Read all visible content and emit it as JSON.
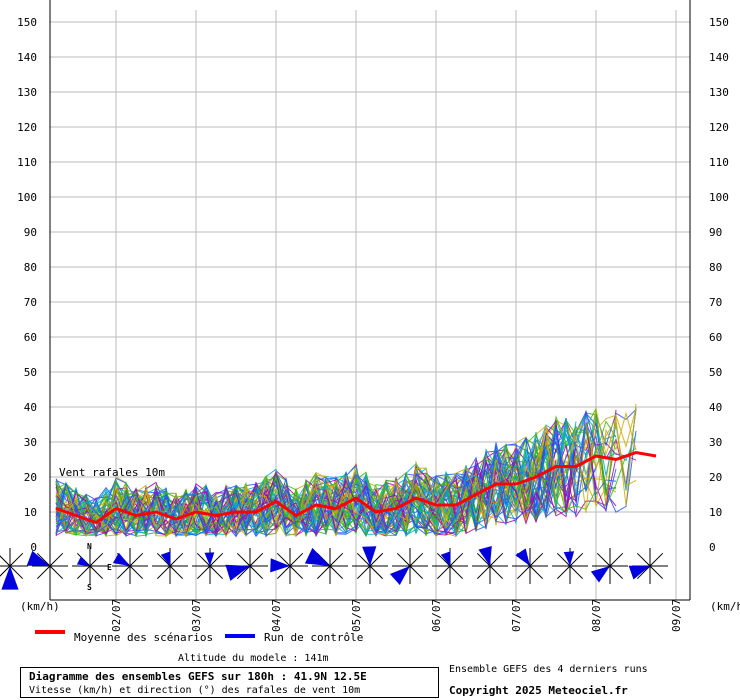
{
  "chart_data": {
    "type": "line",
    "title": "Diagramme des ensembles GEFS sur 180h : 41.9N 12.5E",
    "subtitle": "Vitesse (km/h) et direction (°) des rafales de vent 10m",
    "ylabel": "(km/h)",
    "y_unit_left": "(km/h)",
    "y_unit_right": "(km/h)",
    "ylim": [
      0,
      155
    ],
    "y_ticks": [
      0,
      10,
      20,
      30,
      40,
      50,
      60,
      70,
      80,
      90,
      100,
      110,
      120,
      130,
      140,
      150
    ],
    "xlim_hours": [
      0,
      180
    ],
    "x_ticks": [
      {
        "label": "02/07",
        "hour": 18
      },
      {
        "label": "03/07",
        "hour": 42
      },
      {
        "label": "04/07",
        "hour": 66
      },
      {
        "label": "05/07",
        "hour": 90
      },
      {
        "label": "06/07",
        "hour": 114
      },
      {
        "label": "07/07",
        "hour": 138
      },
      {
        "label": "08/07",
        "hour": 162
      },
      {
        "label": "09/07",
        "hour": 186
      }
    ],
    "grid": true,
    "inline_label": "Vent rafales 10m",
    "series": [
      {
        "name": "Moyenne des scénarios",
        "color": "#ff0000",
        "x": [
          0,
          6,
          12,
          18,
          24,
          30,
          36,
          42,
          48,
          54,
          60,
          66,
          72,
          78,
          84,
          90,
          96,
          102,
          108,
          114,
          120,
          126,
          132,
          138,
          144,
          150,
          156,
          162,
          168,
          174,
          180
        ],
        "values": [
          11,
          9,
          7,
          11,
          9,
          10,
          8,
          10,
          9,
          10,
          10,
          13,
          9,
          12,
          11,
          14,
          10,
          11,
          14,
          12,
          12,
          15,
          18,
          18,
          20,
          23,
          23,
          26,
          25,
          27,
          26
        ]
      }
    ],
    "control_run": {
      "name": "Run de contrôle",
      "color": "#0000ff"
    },
    "ensemble_colors": [
      "#33bb00",
      "#aa00aa",
      "#ccaa00",
      "#00aacc",
      "#2255ff"
    ],
    "wind_rose_compass": {
      "n": "N",
      "s": "S",
      "e": "E"
    }
  },
  "legend": {
    "mean_label": "Moyenne des scénarios",
    "control_label": "Run de contrôle",
    "mean_color": "#ff0000",
    "control_color": "#0000ff"
  },
  "footer": {
    "altitude": "Altitude du modele : 141m",
    "title": "Diagramme des ensembles GEFS sur 180h : 41.9N 12.5E",
    "subtitle": "Vitesse (km/h) et direction (°) des rafales de vent 10m",
    "ensemble_note": "Ensemble GEFS des 4 derniers runs",
    "copyright": "Copyright 2025 Meteociel.fr"
  }
}
